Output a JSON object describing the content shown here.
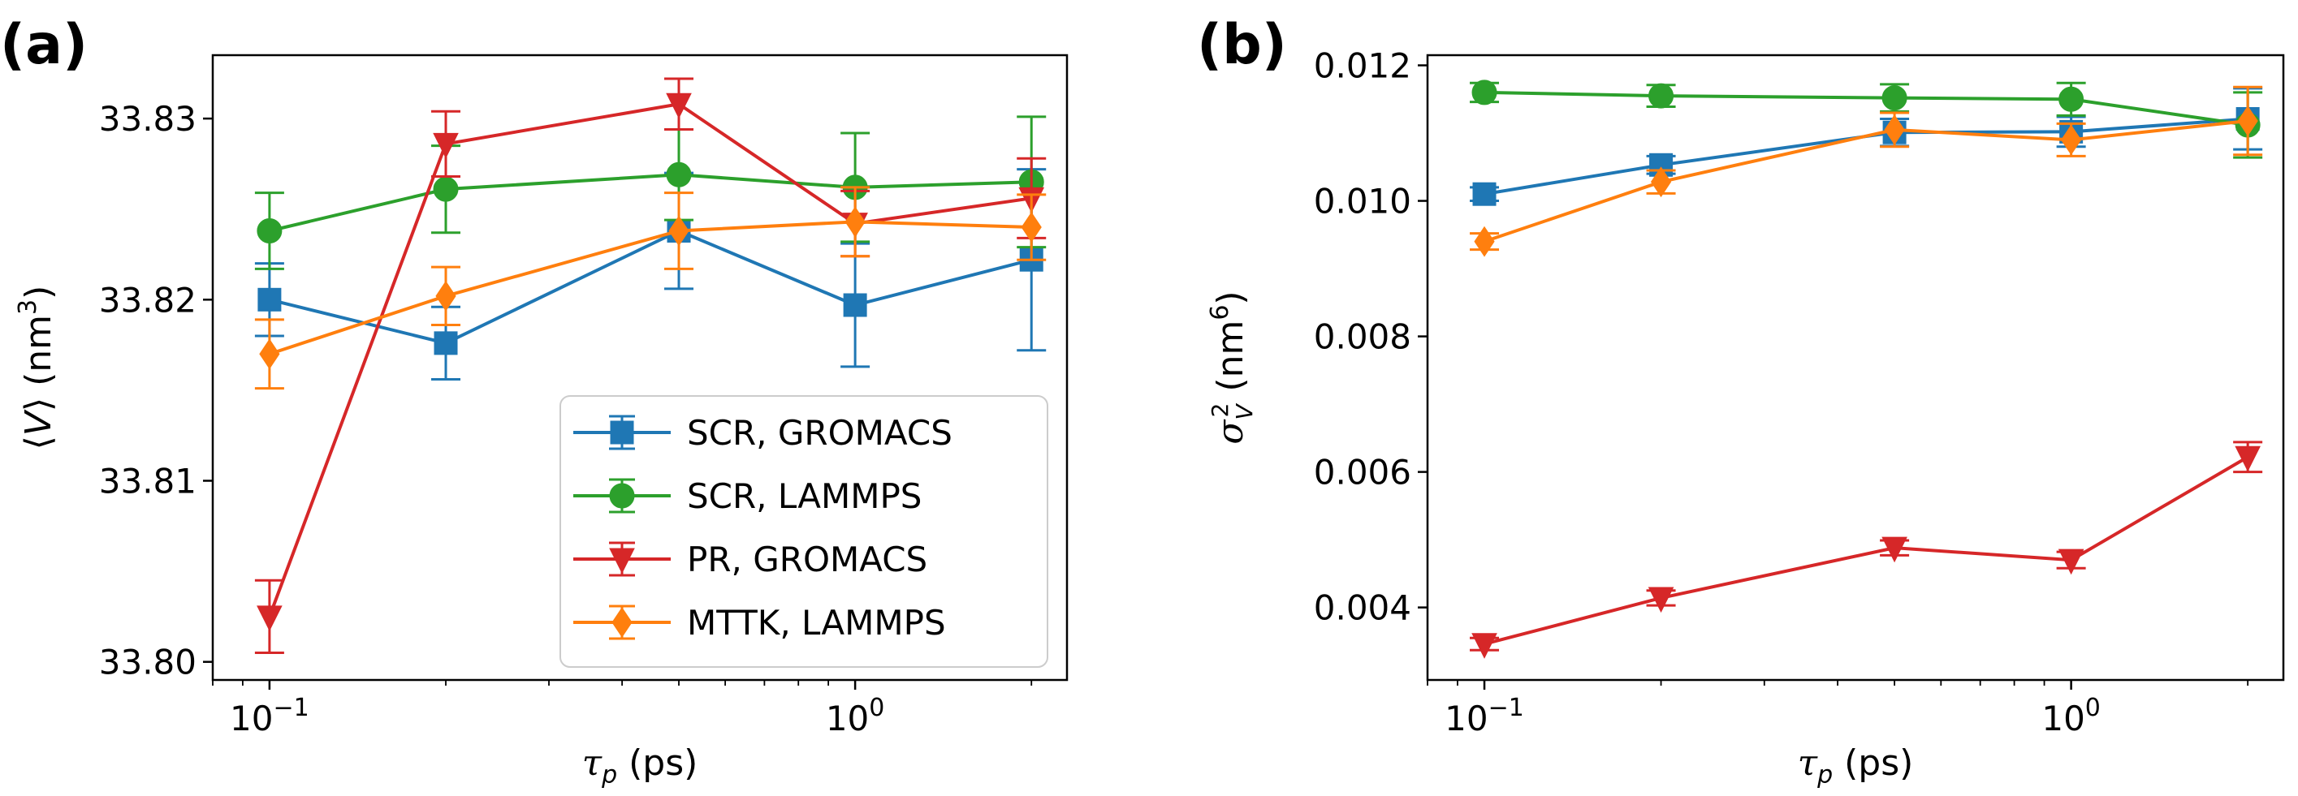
{
  "figure": {
    "series_styles": [
      {
        "name": "SCR, GROMACS",
        "color": "#1f77b4",
        "marker": "square"
      },
      {
        "name": "SCR, LAMMPS",
        "color": "#2ca02c",
        "marker": "circle"
      },
      {
        "name": "PR, GROMACS",
        "color": "#d62728",
        "marker": "triangle-down"
      },
      {
        "name": "MTTK, LAMMPS",
        "color": "#ff7f0e",
        "marker": "diamond"
      }
    ]
  },
  "chart_data": [
    {
      "panel_label": "(a)",
      "type": "line",
      "xscale": "log",
      "xlim": [
        0.08,
        2.3
      ],
      "ylim": [
        33.799,
        33.8335
      ],
      "xlabel": "τp (ps)",
      "ylabel": "⟨V⟩ (nm3)",
      "yticks": [
        "33.80",
        "33.81",
        "33.82",
        "33.83"
      ],
      "ytick_values": [
        33.8,
        33.81,
        33.82,
        33.83
      ],
      "xticks": [
        {
          "value": 0.1,
          "base": "10",
          "exp": "−1"
        },
        {
          "value": 1.0,
          "base": "10",
          "exp": "0"
        }
      ],
      "legend_position": "lower-right",
      "x": [
        0.1,
        0.2,
        0.5,
        1.0,
        2.0
      ],
      "series": [
        {
          "name": "SCR, GROMACS",
          "values": [
            33.82,
            33.8176,
            33.8238,
            33.8197,
            33.8222
          ],
          "errors": [
            0.002,
            0.002,
            0.0032,
            0.0034,
            0.005
          ]
        },
        {
          "name": "SCR, LAMMPS",
          "values": [
            33.8238,
            33.8261,
            33.8269,
            33.8262,
            33.8265
          ],
          "errors": [
            0.0021,
            0.0024,
            0.0025,
            0.003,
            0.0036
          ]
        },
        {
          "name": "PR, GROMACS",
          "values": [
            33.8025,
            33.8286,
            33.8308,
            33.8242,
            33.8256
          ],
          "errors": [
            0.002,
            0.0018,
            0.0014,
            0.0018,
            0.0022
          ]
        },
        {
          "name": "MTTK, LAMMPS",
          "values": [
            33.817,
            33.8202,
            33.8238,
            33.8243,
            33.824
          ],
          "errors": [
            0.0019,
            0.0016,
            0.0021,
            0.0019,
            0.0018
          ]
        }
      ]
    },
    {
      "panel_label": "(b)",
      "type": "line",
      "xscale": "log",
      "xlim": [
        0.08,
        2.3
      ],
      "ylim": [
        0.00293,
        0.01215
      ],
      "xlabel": "τp (ps)",
      "ylabel": "σV2 (nm6)",
      "yticks": [
        "0.004",
        "0.006",
        "0.008",
        "0.010",
        "0.012"
      ],
      "ytick_values": [
        0.004,
        0.006,
        0.008,
        0.01,
        0.012
      ],
      "xticks": [
        {
          "value": 0.1,
          "base": "10",
          "exp": "−1"
        },
        {
          "value": 1.0,
          "base": "10",
          "exp": "0"
        }
      ],
      "x": [
        0.1,
        0.2,
        0.5,
        1.0,
        2.0
      ],
      "series": [
        {
          "name": "SCR, GROMACS",
          "values": [
            0.0101,
            0.01053,
            0.01101,
            0.01102,
            0.01121
          ],
          "errors": [
            0.0001,
            0.00013,
            0.0002,
            0.00022,
            0.00045
          ]
        },
        {
          "name": "SCR, LAMMPS",
          "values": [
            0.0116,
            0.01155,
            0.01152,
            0.0115,
            0.01112
          ],
          "errors": [
            0.00014,
            0.00016,
            0.0002,
            0.00024,
            0.00048
          ]
        },
        {
          "name": "PR, GROMACS",
          "values": [
            0.00346,
            0.00414,
            0.00488,
            0.0047,
            0.00622
          ],
          "errors": [
            9e-05,
            0.00011,
            0.00011,
            0.00012,
            0.00022
          ]
        },
        {
          "name": "MTTK, LAMMPS",
          "values": [
            0.0094,
            0.01028,
            0.01105,
            0.0109,
            0.01118
          ],
          "errors": [
            0.00012,
            0.00017,
            0.00025,
            0.00024,
            0.0005
          ]
        }
      ]
    }
  ]
}
